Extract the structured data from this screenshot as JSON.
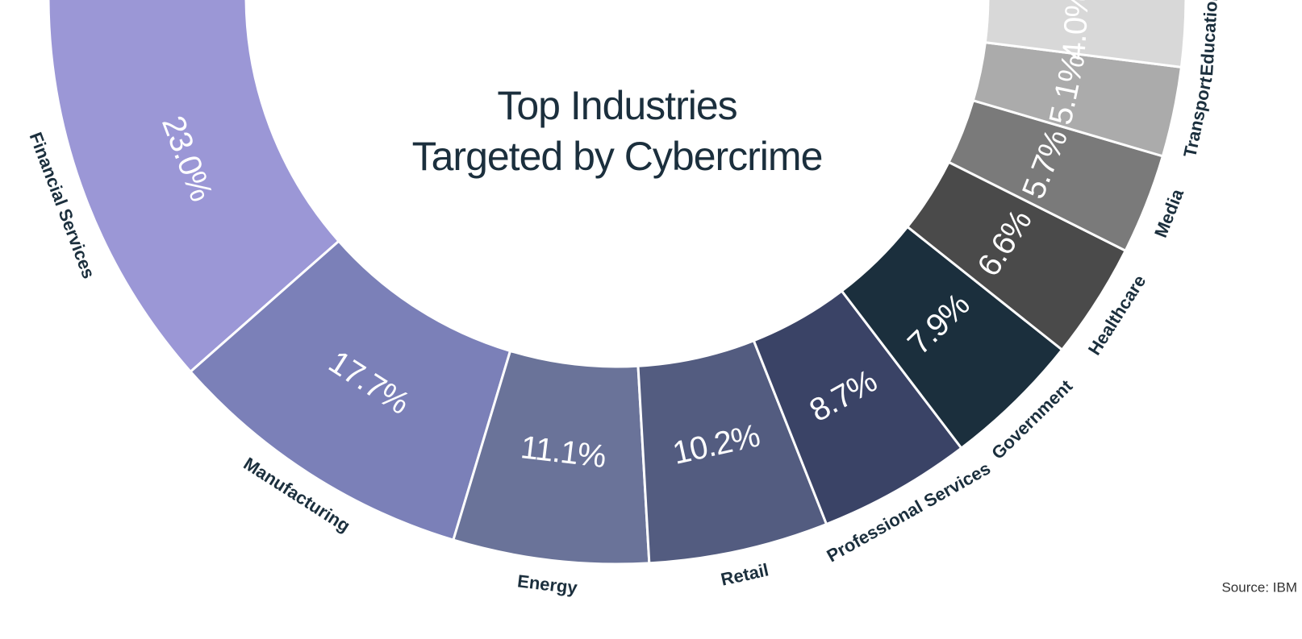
{
  "chart_data": {
    "type": "donut",
    "title": [
      "Top Industries",
      "Targeted by Cybercrime"
    ],
    "categories": [
      "Financial Services",
      "Manufacturing",
      "Energy",
      "Retail",
      "Professional Services",
      "Government",
      "Healthcare",
      "Media",
      "Transport",
      "Education"
    ],
    "values": [
      23.0,
      17.7,
      11.1,
      10.2,
      8.7,
      7.9,
      6.6,
      5.7,
      5.1,
      4.0
    ],
    "value_labels": [
      "23.0%",
      "17.7%",
      "11.1%",
      "10.2%",
      "8.7%",
      "7.9%",
      "6.6%",
      "5.7%",
      "5.1%",
      "4.0%"
    ],
    "colors": [
      "#9b97d6",
      "#7b80b8",
      "#6a7399",
      "#535c80",
      "#3a4366",
      "#1b2f3d",
      "#4a4a4a",
      "#7a7a7a",
      "#ababab",
      "#d8d8d8"
    ],
    "source": "Source: IBM"
  }
}
